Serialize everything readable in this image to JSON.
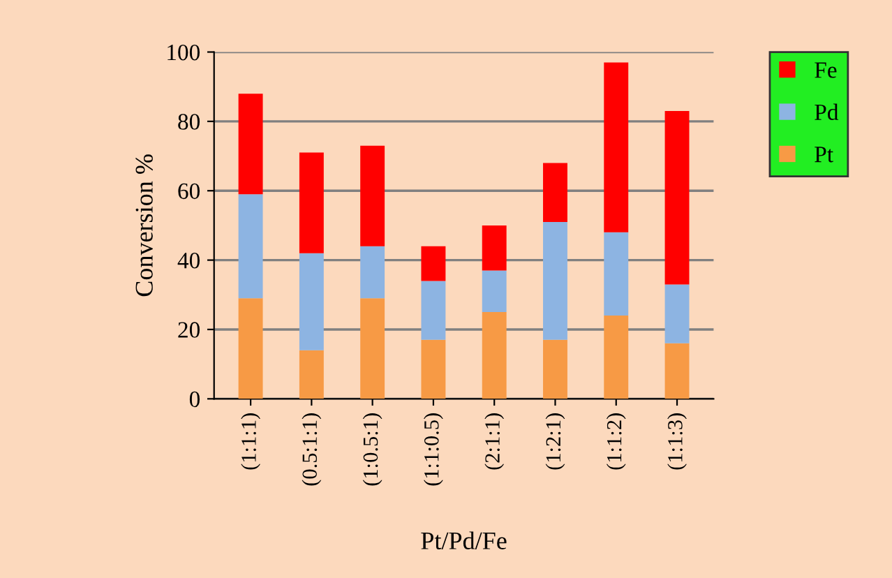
{
  "chart_data": {
    "type": "bar",
    "stacked": true,
    "xlabel": "Pt/Pd/Fe",
    "ylabel": "Conversion %",
    "categories": [
      "(1:1:1)",
      "(0.5:1:1)",
      "(1:0.5:1)",
      "(1:1:0.5)",
      "(2:1:1)",
      "(1:2:1)",
      "(1:1:2)",
      "(1:1:3)"
    ],
    "series": [
      {
        "name": "Pt",
        "color": "#f79a45",
        "values": [
          29,
          14,
          29,
          17,
          25,
          17,
          24,
          16
        ]
      },
      {
        "name": "Pd",
        "color": "#8db4e2",
        "values": [
          30,
          28,
          15,
          17,
          12,
          34,
          24,
          17
        ]
      },
      {
        "name": "Fe",
        "color": "#ff0000",
        "values": [
          29,
          29,
          29,
          10,
          13,
          17,
          49,
          50
        ]
      }
    ],
    "ylim": [
      0,
      100
    ],
    "yticks": [
      0,
      20,
      40,
      60,
      80,
      100
    ],
    "grid": "y",
    "legend": "top right"
  }
}
